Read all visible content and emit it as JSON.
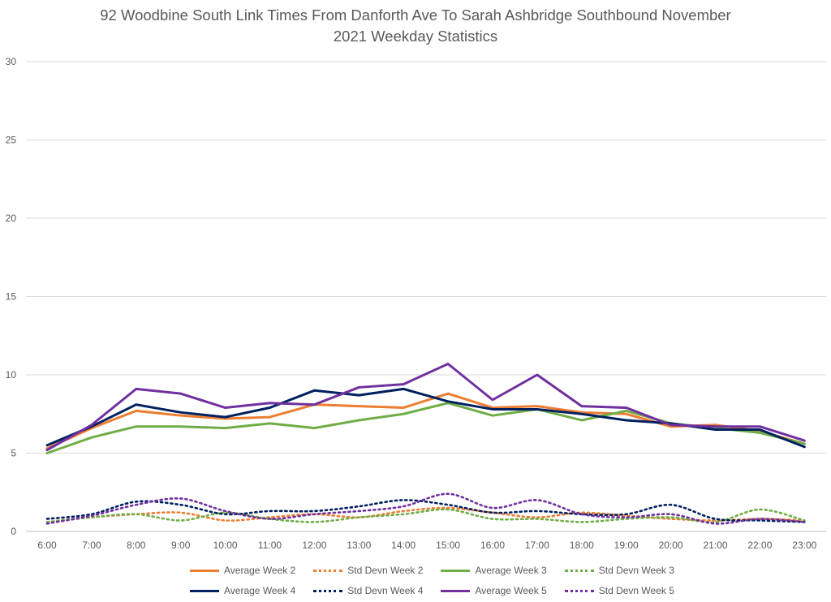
{
  "chart_data": {
    "type": "line",
    "title_lines": [
      "92 Woodbine South Link Times From Danforth Ave To Sarah Ashbridge Southbound November",
      "2021 Weekday Statistics"
    ],
    "xlabel": "",
    "ylabel": "",
    "ylim": [
      0,
      30
    ],
    "yticks": [
      0,
      5,
      10,
      15,
      20,
      25,
      30
    ],
    "grid": true,
    "legend_position": "bottom",
    "categories": [
      "6:00",
      "7:00",
      "8:00",
      "9:00",
      "10:00",
      "11:00",
      "12:00",
      "13:00",
      "14:00",
      "15:00",
      "16:00",
      "17:00",
      "18:00",
      "19:00",
      "20:00",
      "21:00",
      "22:00",
      "23:00"
    ],
    "series": [
      {
        "name": "Average Week 2",
        "style": "solid",
        "color": "#ED7D31",
        "values": [
          5.3,
          6.6,
          7.7,
          7.4,
          7.2,
          7.3,
          8.1,
          8.0,
          7.9,
          8.8,
          7.9,
          8.0,
          7.6,
          7.5,
          6.7,
          6.8,
          6.4,
          5.6
        ]
      },
      {
        "name": "Std Devn Week 2",
        "style": "dotted",
        "color": "#ED7D31",
        "values": [
          0.6,
          0.9,
          1.1,
          1.2,
          0.7,
          0.9,
          1.1,
          0.9,
          1.3,
          1.5,
          1.2,
          0.9,
          1.2,
          1.0,
          0.8,
          0.7,
          0.8,
          0.7
        ]
      },
      {
        "name": "Average Week 3",
        "style": "solid",
        "color": "#70AD47",
        "values": [
          5.0,
          6.0,
          6.7,
          6.7,
          6.6,
          6.9,
          6.6,
          7.1,
          7.5,
          8.2,
          7.4,
          7.8,
          7.1,
          7.7,
          6.9,
          6.6,
          6.3,
          5.6
        ]
      },
      {
        "name": "Std Devn Week 3",
        "style": "dotted",
        "color": "#70AD47",
        "values": [
          0.6,
          0.9,
          1.1,
          0.7,
          1.2,
          0.8,
          0.6,
          0.9,
          1.1,
          1.4,
          0.8,
          0.8,
          0.6,
          0.8,
          0.9,
          0.6,
          1.4,
          0.7
        ]
      },
      {
        "name": "Average Week 4",
        "style": "solid",
        "color": "#002060",
        "values": [
          5.5,
          6.7,
          8.1,
          7.6,
          7.3,
          7.9,
          9.0,
          8.7,
          9.1,
          8.3,
          7.8,
          7.8,
          7.5,
          7.1,
          6.9,
          6.5,
          6.5,
          5.4
        ]
      },
      {
        "name": "Std Devn Week 4",
        "style": "dotted",
        "color": "#002060",
        "values": [
          0.8,
          1.1,
          1.9,
          1.7,
          1.1,
          1.3,
          1.3,
          1.6,
          2.0,
          1.7,
          1.2,
          1.3,
          1.1,
          1.1,
          1.7,
          0.8,
          0.7,
          0.6
        ]
      },
      {
        "name": "Average Week 5",
        "style": "solid",
        "color": "#7030A0",
        "values": [
          5.2,
          6.8,
          9.1,
          8.8,
          7.9,
          8.2,
          8.1,
          9.2,
          9.4,
          10.7,
          8.4,
          10.0,
          8.0,
          7.9,
          6.8,
          6.7,
          6.7,
          5.8
        ]
      },
      {
        "name": "Std Devn Week 5",
        "style": "dotted",
        "color": "#7030A0",
        "values": [
          0.5,
          1.0,
          1.7,
          2.1,
          1.3,
          0.8,
          1.1,
          1.3,
          1.6,
          2.4,
          1.5,
          2.0,
          1.1,
          0.9,
          1.1,
          0.5,
          0.8,
          0.6
        ]
      }
    ]
  }
}
